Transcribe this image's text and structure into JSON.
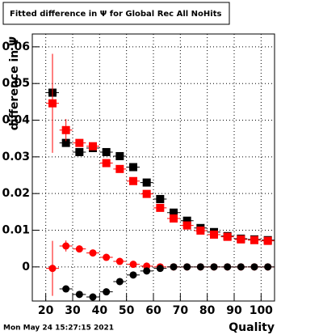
{
  "chart_data": {
    "type": "scatter",
    "title": "Fitted difference in Ψ  for Global Rec All NoHits",
    "ylabel": "difference in Ψ",
    "xlabel": "Quality",
    "footer": "Mon May 24 15:27:15 2021",
    "x": [
      22.5,
      27.5,
      32.5,
      37.5,
      42.5,
      47.5,
      52.5,
      57.5,
      62.5,
      67.5,
      72.5,
      77.5,
      82.5,
      87.5,
      92.5,
      97.5,
      102.5
    ],
    "series": [
      {
        "color": "#000000",
        "marker": "square",
        "values": [
          0.0475,
          0.0338,
          0.0313,
          0.0324,
          0.0313,
          0.0302,
          0.0272,
          0.023,
          0.0185,
          0.0148,
          0.0126,
          0.0106,
          0.0095,
          0.0084,
          0.0077,
          0.0075,
          0.0073
        ]
      },
      {
        "color": "#ff0000",
        "marker": "square",
        "values": [
          0.0446,
          0.0373,
          0.0338,
          0.0329,
          0.0283,
          0.0267,
          0.0234,
          0.0199,
          0.0161,
          0.0132,
          0.0113,
          0.0099,
          0.0088,
          0.0082,
          0.0075,
          0.0073,
          0.0071
        ],
        "errors": [
          0.0135,
          0.003,
          0.001,
          0.0008,
          0.0006,
          0.0005,
          0.0004,
          0.0004,
          0.0003,
          0.0003,
          0.0003,
          0.0002,
          0.0002,
          0.0002,
          0.0002,
          0.0002,
          0.0002
        ]
      },
      {
        "color": "#ff0000",
        "marker": "circle",
        "values": [
          -0.0004,
          0.0057,
          0.0049,
          0.0038,
          0.0026,
          0.0015,
          0.0007,
          0.0002,
          0,
          0,
          0,
          0,
          0,
          0,
          0,
          0,
          0
        ],
        "errors": [
          0.0075,
          0.0015,
          0.0006,
          0.0005,
          0.0004,
          0.0003,
          0.0003,
          0.0002,
          0.0002,
          0.0002,
          0.0002,
          0.0002,
          0.0002,
          0.0002,
          0.0002,
          0.0002,
          0.0002
        ]
      },
      {
        "color": "#000000",
        "marker": "circle",
        "values": [
          null,
          -0.006,
          -0.0075,
          -0.0082,
          -0.0068,
          -0.004,
          -0.0022,
          -0.0011,
          -0.0004,
          0,
          0,
          0,
          0,
          0,
          0,
          0,
          0
        ]
      }
    ],
    "xlim": [
      15,
      105
    ],
    "xticks": [
      20,
      30,
      40,
      50,
      60,
      70,
      80,
      90,
      100
    ],
    "ylim": [
      -0.0093,
      0.0635
    ],
    "yticks": [
      0,
      0.01,
      0.02,
      0.03,
      0.04,
      0.05,
      0.06
    ],
    "grid": true
  }
}
